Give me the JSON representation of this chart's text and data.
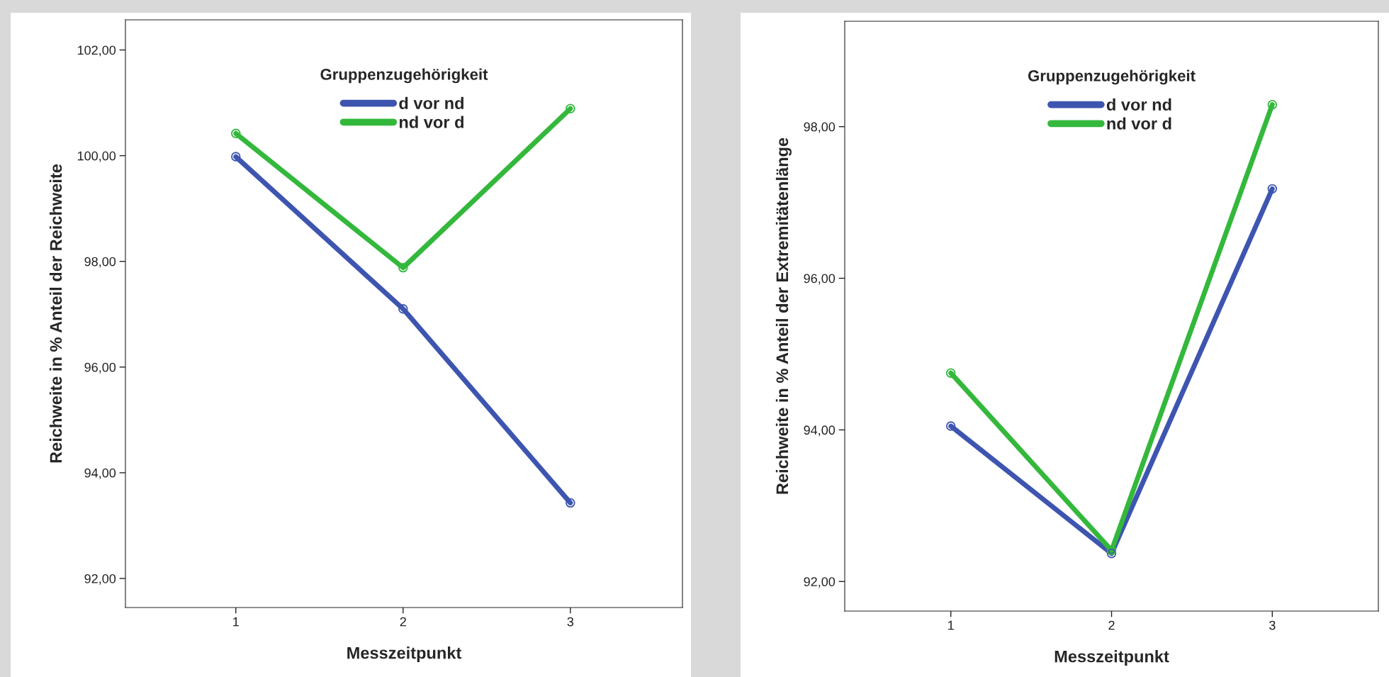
{
  "chart_data": [
    {
      "type": "line",
      "xlabel": "Messzeitpunkt",
      "ylabel": "Reichweite in % Anteil der Reichweite",
      "legend_title": "Gruppenzugehörigkeit",
      "legend": "top",
      "marker": "circle",
      "line_style": "solid",
      "grid": false,
      "x": [
        1,
        2,
        3
      ],
      "xlim": [
        0.34,
        3.67
      ],
      "xticks": [
        1,
        2,
        3
      ],
      "ylim": [
        91.45,
        102.57
      ],
      "yticks": [
        {
          "value": 92,
          "label": "92,00"
        },
        {
          "value": 94,
          "label": "94,00"
        },
        {
          "value": 96,
          "label": "96,00"
        },
        {
          "value": 98,
          "label": "98,00"
        },
        {
          "value": 100,
          "label": "100,00"
        },
        {
          "value": 102,
          "label": "102,00"
        }
      ],
      "series": [
        {
          "name": "d vor nd",
          "color": "#3e55b0",
          "values": [
            99.98,
            97.1,
            93.43
          ]
        },
        {
          "name": "nd vor d",
          "color": "#34b83c",
          "values": [
            100.42,
            97.88,
            100.89
          ]
        }
      ]
    },
    {
      "type": "line",
      "xlabel": "Messzeitpunkt",
      "ylabel": "Reichweite in % Anteil der Extremitätenlänge",
      "legend_title": "Gruppenzugehörigkeit",
      "legend": "top",
      "marker": "circle",
      "line_style": "solid",
      "grid": false,
      "x": [
        1,
        2,
        3
      ],
      "xlim": [
        0.34,
        3.66
      ],
      "xticks": [
        1,
        2,
        3
      ],
      "ylim": [
        91.61,
        99.39
      ],
      "yticks": [
        {
          "value": 92,
          "label": "92,00"
        },
        {
          "value": 94,
          "label": "94,00"
        },
        {
          "value": 96,
          "label": "96,00"
        },
        {
          "value": 98,
          "label": "98,00"
        }
      ],
      "series": [
        {
          "name": "d vor nd",
          "color": "#3e55b0",
          "values": [
            94.05,
            92.37,
            97.18
          ]
        },
        {
          "name": "nd vor d",
          "color": "#34b83c",
          "values": [
            94.75,
            92.41,
            98.29
          ]
        }
      ]
    }
  ]
}
